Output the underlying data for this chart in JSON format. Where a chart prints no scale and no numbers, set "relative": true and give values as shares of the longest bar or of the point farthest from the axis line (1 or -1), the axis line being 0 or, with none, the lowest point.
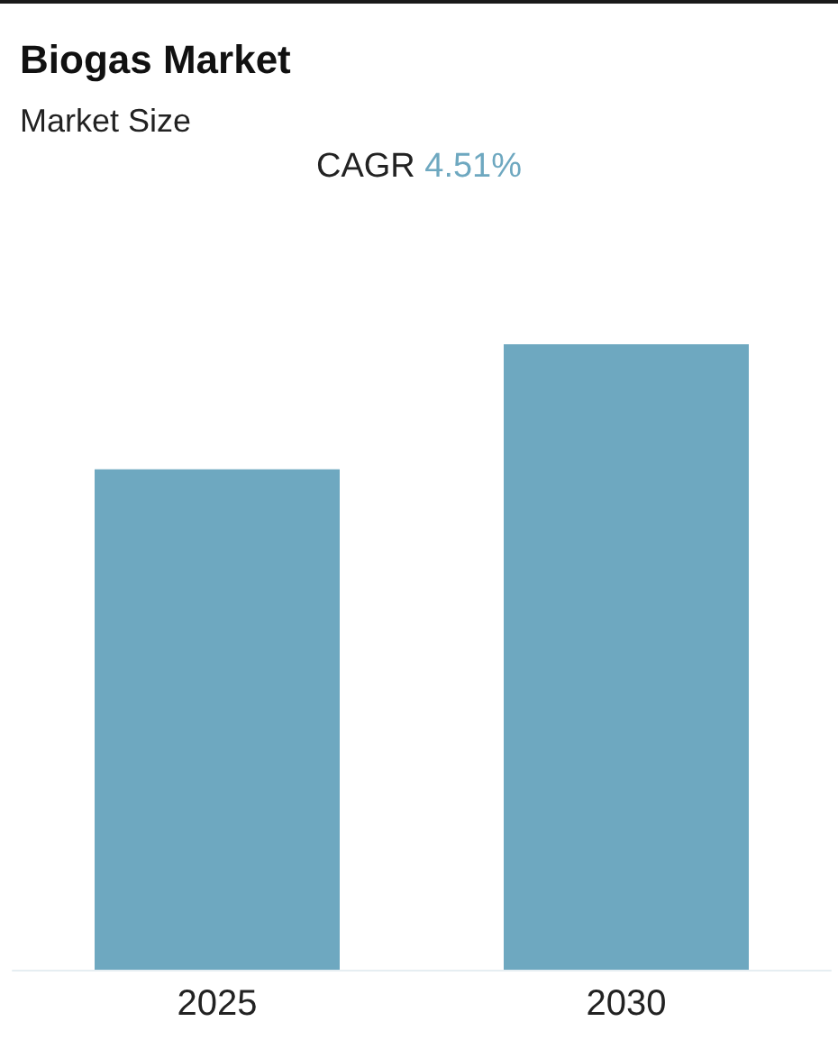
{
  "chart_data": {
    "type": "bar",
    "title": "Biogas Market",
    "subtitle": "Market Size",
    "annotations": [
      "CAGR 4.51%"
    ],
    "categories": [
      "2025",
      "2030"
    ],
    "values": [
      0.8,
      1
    ],
    "color": "#6ea8c0",
    "relative": true
  }
}
